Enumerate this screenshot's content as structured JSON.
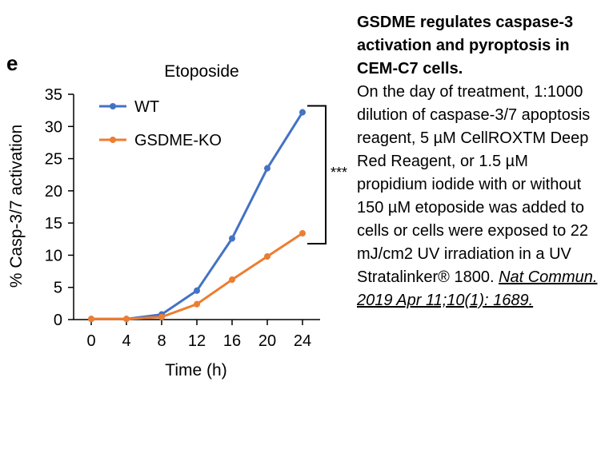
{
  "panel_label": "e",
  "caption": {
    "heading": "GSDME regulates caspase-3 activation and pyroptosis in CEM-C7 cells.",
    "body": "On the day of treatment, 1:1000 dilution of caspase-3/7 apoptosis reagent, 5 µM CellROXTM Deep Red Reagent, or 1.5 µM propidium iodide with or without 150 µM etoposide was added to cells or cells were exposed to 22 mJ/cm2 UV irradiation in a UV Stratalinker® 1800.",
    "citation": "Nat Commun. 2019 Apr 11;10(1): 1689."
  },
  "chart_data": {
    "type": "line",
    "title": "Etoposide",
    "xlabel": "Time (h)",
    "ylabel": "% Casp-3/7 activation",
    "x": [
      0,
      4,
      8,
      12,
      16,
      20,
      24
    ],
    "xlim": [
      -2,
      26
    ],
    "ylim": [
      0,
      35
    ],
    "xticks": [
      0,
      4,
      8,
      12,
      16,
      20,
      24
    ],
    "yticks": [
      0,
      5,
      10,
      15,
      20,
      25,
      30,
      35
    ],
    "legend_position": "top-left",
    "series": [
      {
        "name": "WT",
        "color": "#4472C4",
        "values": [
          0.1,
          0.1,
          0.8,
          4.5,
          12.6,
          23.5,
          32.2
        ]
      },
      {
        "name": "GSDME-KO",
        "color": "#ED7D31",
        "values": [
          0.1,
          0.1,
          0.4,
          2.4,
          6.2,
          9.8,
          13.4
        ]
      }
    ],
    "significance": "***"
  }
}
